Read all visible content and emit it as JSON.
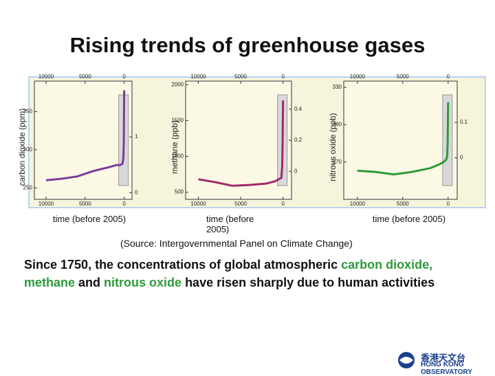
{
  "title": "Rising trends of greenhouse gases",
  "chart_data": [
    {
      "type": "line",
      "ylabel": "carbon dioxide (ppm)",
      "xlabel": "time (before 2005)",
      "x": [
        10000,
        8000,
        6000,
        4000,
        2000,
        1000,
        500,
        200,
        100,
        50,
        0
      ],
      "series": [
        {
          "color": "#7a3d9a",
          "values": [
            260,
            262,
            265,
            272,
            277,
            280,
            280,
            282,
            290,
            310,
            378
          ]
        }
      ],
      "xlim": [
        11500,
        -1000
      ],
      "xticks": [
        10000,
        5000,
        0
      ],
      "ylim": [
        235,
        390
      ],
      "yticks": [
        250,
        300,
        350
      ],
      "y2lim": [
        -0.12,
        2.0
      ],
      "y2ticks": [
        0,
        1
      ]
    },
    {
      "type": "line",
      "ylabel": "methane (ppb)",
      "xlabel": "time (before 2005)",
      "x": [
        10000,
        8000,
        6000,
        4000,
        2000,
        1000,
        500,
        200,
        100,
        50,
        0
      ],
      "series": [
        {
          "color": "#a0286a",
          "values": [
            680,
            640,
            590,
            600,
            620,
            650,
            680,
            700,
            850,
            1200,
            1780
          ]
        }
      ],
      "xlim": [
        11500,
        -1000
      ],
      "xticks": [
        10000,
        5000,
        0
      ],
      "ylim": [
        400,
        2050
      ],
      "yticks": [
        500,
        1000,
        1500,
        2000
      ],
      "y2lim": [
        -0.18,
        0.58
      ],
      "y2ticks": [
        0,
        0.2,
        0.4
      ]
    },
    {
      "type": "line",
      "ylabel": "nitrous oxide (ppb)",
      "xlabel": "time (before 2005)",
      "x": [
        10000,
        8000,
        6000,
        4000,
        2000,
        1000,
        500,
        200,
        100,
        50,
        0
      ],
      "series": [
        {
          "color": "#2e9a3a",
          "values": [
            263,
            262,
            260,
            262,
            265,
            268,
            270,
            272,
            275,
            285,
            318
          ]
        }
      ],
      "xlim": [
        11500,
        -1000
      ],
      "xticks": [
        10000,
        5000,
        0
      ],
      "ylim": [
        240,
        335
      ],
      "yticks": [
        270,
        300,
        330
      ],
      "y2lim": [
        -0.118,
        0.217
      ],
      "y2ticks": [
        0,
        0.1
      ]
    }
  ],
  "source": "(Source: Intergovernmental Panel on Climate Change)",
  "body": {
    "highlight_color": "#2e9a3a",
    "parts": [
      {
        "text": "Since 1750, the concentrations of global atmospheric "
      },
      {
        "text": "carbon dioxide, methane",
        "highlight": true
      },
      {
        "text": " and "
      },
      {
        "text": "nitrous oxide",
        "highlight": true
      },
      {
        "text": " have risen sharply due to human activities"
      }
    ]
  },
  "logo": {
    "chinese": "香港天文台",
    "english": "HONG KONG OBSERVATORY"
  }
}
